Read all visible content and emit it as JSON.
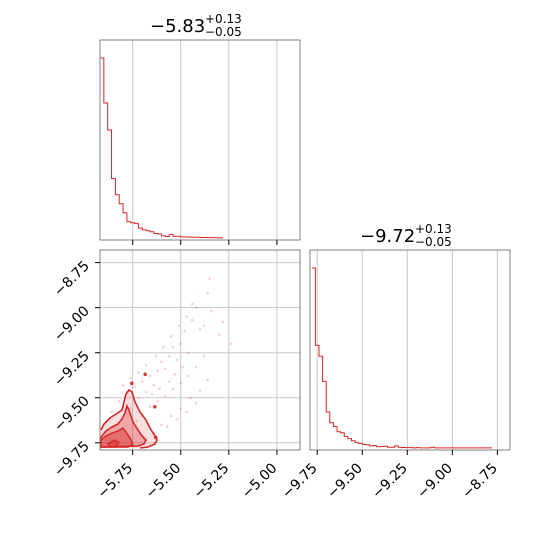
{
  "chart_data": [
    {
      "type": "histogram",
      "panel": "top-left",
      "title_value": "−5.83",
      "title_plus": "+0.13",
      "title_minus": "−0.05",
      "xlim": [
        -5.92,
        -4.88
      ],
      "xticks": [
        -5.75,
        -5.5,
        -5.25,
        -5.0
      ],
      "grid": true,
      "color": "#d62728",
      "bins": {
        "start": -5.92,
        "width": 0.02,
        "heights": [
          1.0,
          0.75,
          0.6,
          0.33,
          0.24,
          0.19,
          0.14,
          0.09,
          0.085,
          0.08,
          0.055,
          0.045,
          0.04,
          0.035,
          0.025,
          0.022,
          0.012,
          0.008,
          0.02,
          0.01,
          0.01,
          0.006,
          0.006,
          0.005,
          0.004,
          0.004,
          0.003,
          0.003,
          0.002,
          0.002,
          0.0015,
          0.001
        ]
      }
    },
    {
      "type": "scatter",
      "panel": "bottom-left",
      "xlim": [
        -5.92,
        -4.88
      ],
      "ylim": [
        -9.79,
        -8.68
      ],
      "xticks": [
        -5.75,
        -5.5,
        -5.25,
        -5.0
      ],
      "xtick_labels": [
        "−5.75",
        "−5.50",
        "−5.25",
        "−5.00"
      ],
      "yticks": [
        -9.75,
        -9.5,
        -9.25,
        -9.0,
        -8.75
      ],
      "ytick_labels": [
        "−9.75",
        "−9.50",
        "−9.25",
        "−9.00",
        "−8.75"
      ],
      "grid": true,
      "color": "#d62728",
      "points": [
        [
          -5.86,
          -9.58
        ],
        [
          -5.82,
          -9.52
        ],
        [
          -5.8,
          -9.55
        ],
        [
          -5.78,
          -9.47
        ],
        [
          -5.76,
          -9.56
        ],
        [
          -5.74,
          -9.44
        ],
        [
          -5.72,
          -9.5
        ],
        [
          -5.7,
          -9.41
        ],
        [
          -5.68,
          -9.47
        ],
        [
          -5.66,
          -9.38
        ],
        [
          -5.64,
          -9.43
        ],
        [
          -5.62,
          -9.35
        ],
        [
          -5.6,
          -9.3
        ],
        [
          -5.58,
          -9.34
        ],
        [
          -5.56,
          -9.27
        ],
        [
          -5.54,
          -9.22
        ],
        [
          -5.52,
          -9.29
        ],
        [
          -5.5,
          -9.2
        ],
        [
          -5.48,
          -9.13
        ],
        [
          -5.46,
          -9.25
        ],
        [
          -5.44,
          -9.07
        ],
        [
          -5.42,
          -9.0
        ],
        [
          -5.4,
          -9.12
        ],
        [
          -5.38,
          -9.1
        ],
        [
          -5.36,
          -8.92
        ],
        [
          -5.35,
          -8.84
        ],
        [
          -5.34,
          -9.02
        ],
        [
          -5.3,
          -9.15
        ],
        [
          -5.28,
          -9.08
        ],
        [
          -5.24,
          -9.2
        ],
        [
          -5.7,
          -9.6
        ],
        [
          -5.66,
          -9.55
        ],
        [
          -5.62,
          -9.52
        ],
        [
          -5.58,
          -9.49
        ],
        [
          -5.54,
          -9.45
        ],
        [
          -5.5,
          -9.42
        ],
        [
          -5.46,
          -9.38
        ],
        [
          -5.42,
          -9.33
        ],
        [
          -5.38,
          -9.27
        ],
        [
          -5.6,
          -9.65
        ],
        [
          -5.55,
          -9.6
        ],
        [
          -5.5,
          -9.56
        ],
        [
          -5.45,
          -9.5
        ],
        [
          -5.4,
          -9.46
        ],
        [
          -5.36,
          -9.4
        ],
        [
          -5.64,
          -9.7
        ],
        [
          -5.57,
          -9.66
        ],
        [
          -5.52,
          -9.62
        ],
        [
          -5.47,
          -9.58
        ],
        [
          -5.42,
          -9.53
        ],
        [
          -5.73,
          -9.63
        ],
        [
          -5.76,
          -9.39
        ],
        [
          -5.8,
          -9.43
        ],
        [
          -5.72,
          -9.36
        ],
        [
          -5.68,
          -9.32
        ],
        [
          -5.63,
          -9.27
        ],
        [
          -5.59,
          -9.22
        ],
        [
          -5.55,
          -9.16
        ],
        [
          -5.51,
          -9.1
        ],
        [
          -5.47,
          -9.05
        ],
        [
          -5.44,
          -8.98
        ],
        [
          -5.49,
          -9.33
        ],
        [
          -5.53,
          -9.37
        ],
        [
          -5.56,
          -9.41
        ],
        [
          -5.61,
          -9.45
        ],
        [
          -5.65,
          -9.48
        ]
      ],
      "contour_levels": 3
    },
    {
      "type": "histogram",
      "panel": "bottom-right",
      "title_value": "−9.72",
      "title_plus": "+0.13",
      "title_minus": "−0.05",
      "xlim": [
        -9.79,
        -8.68
      ],
      "xticks": [
        -9.75,
        -9.5,
        -9.25,
        -9.0,
        -8.75
      ],
      "xtick_labels": [
        "−9.75",
        "−9.50",
        "−9.25",
        "−9.00",
        "−8.75"
      ],
      "grid": true,
      "color": "#d62728",
      "bins": {
        "start": -9.78,
        "width": 0.02,
        "heights": [
          1.0,
          0.57,
          0.51,
          0.37,
          0.2,
          0.14,
          0.12,
          0.09,
          0.085,
          0.063,
          0.052,
          0.04,
          0.03,
          0.026,
          0.02,
          0.018,
          0.012,
          0.013,
          0.007,
          0.008,
          0.01,
          0.004,
          0.004,
          0.012,
          0.004,
          0.003,
          0.002,
          0.002,
          0.001,
          0.002,
          0.001,
          0.001,
          0.001,
          0.004,
          0.001,
          0.001,
          0.001,
          0.001,
          0.001,
          0.001,
          0.001,
          0.001,
          0.001,
          0.001,
          0.001,
          0.001,
          0.001,
          0.001,
          0.001,
          0.001
        ]
      }
    }
  ]
}
